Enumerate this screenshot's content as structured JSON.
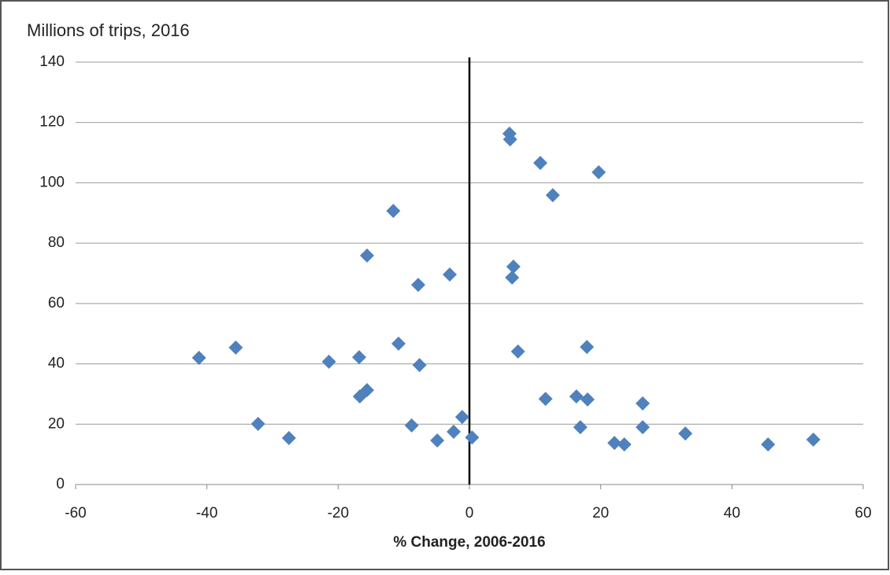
{
  "chart_data": {
    "type": "scatter",
    "title": "Millions of trips, 2016",
    "xlabel": "% Change, 2006-2016",
    "series": [
      {
        "color": "#4f81bd",
        "marker": "diamond",
        "x": [
          -41.2,
          -35.6,
          -32.2,
          -27.5,
          -21.4,
          -16.8,
          -16.7,
          -15.6,
          -15.6,
          -11.6,
          -10.8,
          -8.8,
          -7.8,
          -7.6,
          -4.9,
          -3.0,
          -2.4,
          -1.1,
          0.4,
          6.1,
          6.2,
          6.5,
          6.7,
          7.4,
          10.8,
          11.6,
          12.7,
          16.3,
          16.9,
          17.9,
          18.0,
          19.7,
          22.1,
          23.6,
          26.4,
          26.4,
          32.9,
          45.5,
          52.4
        ],
        "values": [
          42.0,
          45.4,
          20.1,
          15.4,
          40.7,
          42.2,
          29.2,
          75.9,
          31.3,
          90.7,
          46.7,
          19.6,
          66.2,
          39.6,
          14.6,
          69.6,
          17.5,
          22.4,
          15.6,
          116.3,
          114.4,
          68.6,
          72.2,
          44.1,
          106.6,
          28.4,
          95.9,
          29.2,
          19.0,
          45.6,
          28.2,
          103.5,
          13.8,
          13.3,
          26.9,
          19.0,
          16.9,
          13.3,
          14.9
        ]
      }
    ],
    "xlim": [
      -60,
      60
    ],
    "xticks": [
      -60,
      -40,
      -20,
      0,
      20,
      40,
      60
    ],
    "ylim": [
      0,
      140
    ],
    "yticks": [
      0,
      20,
      40,
      60,
      80,
      100,
      120,
      140
    ],
    "grid": true,
    "zero_line": true
  }
}
